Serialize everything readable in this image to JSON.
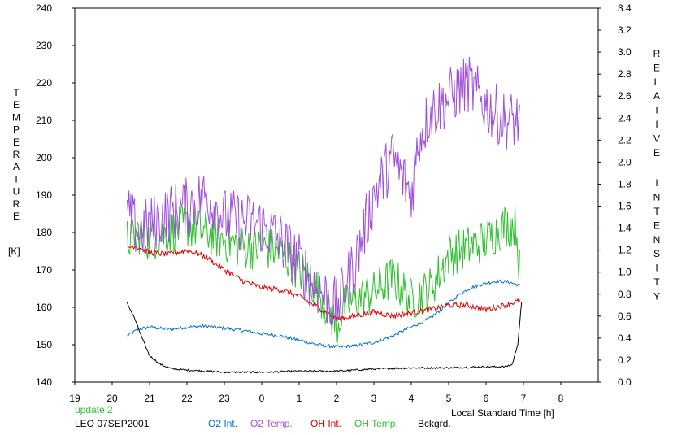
{
  "chart_data": {
    "type": "line",
    "xlabel": "Local Standard Time [h]",
    "ylabel_left": "TEMPERATURE",
    "ylabel_left_unit": "[K]",
    "ylabel_right": "RELATIVE INTENSITY",
    "x_ticks": [
      "19",
      "20",
      "21",
      "22",
      "23",
      "0",
      "1",
      "2",
      "3",
      "4",
      "5",
      "6",
      "7",
      "8"
    ],
    "xlim": [
      19,
      33
    ],
    "ylim_left": [
      140,
      240
    ],
    "ylim_right": [
      0.0,
      3.4
    ],
    "y_ticks_left": [
      "140",
      "150",
      "160",
      "170",
      "180",
      "190",
      "200",
      "210",
      "220",
      "230",
      "240"
    ],
    "y_ticks_right": [
      "0.0",
      "0.2",
      "0.4",
      "0.6",
      "0.8",
      "1.0",
      "1.2",
      "1.4",
      "1.6",
      "1.8",
      "2.0",
      "2.2",
      "2.4",
      "2.6",
      "2.8",
      "3.0",
      "3.2",
      "3.4"
    ],
    "grid": false,
    "series": [
      {
        "name": "O2 Int.",
        "axis": "right",
        "color": "#0070d0",
        "noise": 0.015,
        "x": [
          20.4,
          20.7,
          21.0,
          21.5,
          22.0,
          22.5,
          23.0,
          23.5,
          24.0,
          24.5,
          25.0,
          25.5,
          26.0,
          26.5,
          27.0,
          27.5,
          28.0,
          28.5,
          28.8,
          29.0,
          29.3,
          29.6,
          30.0,
          30.3,
          30.6,
          30.9
        ],
        "values": [
          0.42,
          0.48,
          0.5,
          0.48,
          0.5,
          0.51,
          0.49,
          0.47,
          0.44,
          0.42,
          0.38,
          0.34,
          0.32,
          0.33,
          0.36,
          0.42,
          0.5,
          0.58,
          0.66,
          0.72,
          0.8,
          0.86,
          0.9,
          0.92,
          0.91,
          0.88
        ]
      },
      {
        "name": "O2 Temp.",
        "axis": "left",
        "color": "#a050d8",
        "noise": 8,
        "x": [
          20.4,
          20.7,
          21.0,
          21.5,
          22.0,
          22.5,
          23.0,
          23.5,
          24.0,
          24.5,
          25.0,
          25.5,
          26.0,
          26.5,
          27.0,
          27.5,
          28.0,
          28.2,
          28.5,
          29.0,
          29.5,
          30.0,
          30.5,
          30.9
        ],
        "values": [
          185,
          180,
          182,
          185,
          187,
          190,
          184,
          183,
          182,
          178,
          172,
          165,
          160,
          172,
          190,
          200,
          190,
          205,
          212,
          216,
          220,
          214,
          210,
          210
        ]
      },
      {
        "name": "OH Int.",
        "axis": "right",
        "color": "#e00000",
        "noise": 0.025,
        "x": [
          20.4,
          20.6,
          21.0,
          21.5,
          22.0,
          22.5,
          23.0,
          23.5,
          24.0,
          24.5,
          25.0,
          25.5,
          26.0,
          26.5,
          27.0,
          27.5,
          28.0,
          28.5,
          29.0,
          29.5,
          30.0,
          30.5,
          30.9
        ],
        "values": [
          1.22,
          1.24,
          1.18,
          1.16,
          1.2,
          1.14,
          1.02,
          0.92,
          0.86,
          0.84,
          0.78,
          0.68,
          0.58,
          0.6,
          0.64,
          0.6,
          0.63,
          0.66,
          0.7,
          0.7,
          0.66,
          0.7,
          0.74
        ]
      },
      {
        "name": "OH Temp.",
        "axis": "left",
        "color": "#30c030",
        "noise": 6,
        "x": [
          20.4,
          20.7,
          21.0,
          21.5,
          22.0,
          22.5,
          23.0,
          23.5,
          24.0,
          24.5,
          25.0,
          25.5,
          26.0,
          26.2,
          26.5,
          27.0,
          27.5,
          28.0,
          28.5,
          28.8,
          29.0,
          29.5,
          30.0,
          30.5,
          30.8,
          30.9
        ],
        "values": [
          178,
          180,
          178,
          180,
          182,
          180,
          178,
          176,
          176,
          175,
          170,
          165,
          155,
          160,
          162,
          164,
          168,
          162,
          165,
          170,
          174,
          176,
          178,
          182,
          182,
          170
        ]
      },
      {
        "name": "Bckgrd.",
        "axis": "right",
        "color": "#000000",
        "noise": 0.008,
        "x": [
          20.4,
          20.6,
          20.8,
          21.0,
          21.3,
          21.6,
          22.0,
          22.5,
          23.0,
          23.5,
          24.0,
          25.0,
          26.0,
          27.0,
          28.0,
          29.0,
          30.0,
          30.5,
          30.7,
          30.85,
          30.95
        ],
        "values": [
          0.72,
          0.58,
          0.4,
          0.24,
          0.16,
          0.12,
          0.11,
          0.1,
          0.09,
          0.09,
          0.09,
          0.1,
          0.1,
          0.12,
          0.13,
          0.13,
          0.14,
          0.14,
          0.16,
          0.35,
          0.72
        ]
      }
    ],
    "notes": [
      "update 2",
      "LEO 07SEP2001"
    ],
    "legend_position": "bottom"
  }
}
